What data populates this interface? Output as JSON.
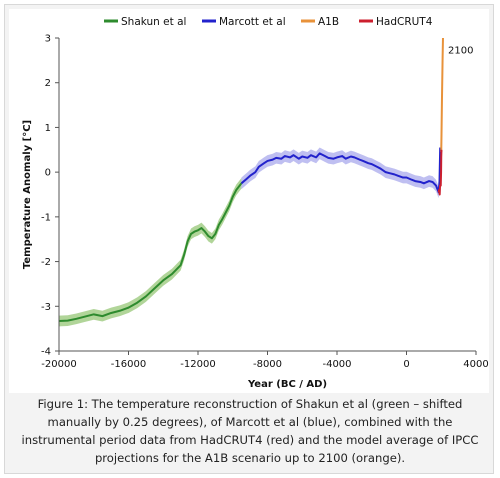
{
  "chart_data": {
    "type": "line",
    "xlabel": "Year (BC / AD)",
    "ylabel": "Temperature Anomaly [°C]",
    "xlim": [
      -20000,
      4000
    ],
    "ylim": [
      -4,
      3
    ],
    "xticks": [
      -20000,
      -16000,
      -12000,
      -8000,
      -4000,
      0,
      4000
    ],
    "xtick_labels": [
      "-20000",
      "-16000",
      "-12000",
      "-8000",
      "-4000",
      "0",
      "4000"
    ],
    "yticks": [
      -4,
      -3,
      -2,
      -1,
      0,
      1,
      2,
      3
    ],
    "ytick_labels": [
      "-4",
      "-3",
      "-2",
      "-1",
      "0",
      "1",
      "2",
      "3"
    ],
    "grid": false,
    "legend_position": "top",
    "annotations": [
      {
        "text": "2100",
        "x": 2100,
        "y": 2.85
      }
    ],
    "series": [
      {
        "name": "Shakun et al",
        "color": "#2e8b2e",
        "band_color": "#a9d08e",
        "band_half_width": 0.12,
        "x": [
          -20000,
          -19500,
          -19000,
          -18500,
          -18000,
          -17500,
          -17000,
          -16500,
          -16000,
          -15500,
          -15000,
          -14500,
          -14000,
          -13500,
          -13000,
          -12800,
          -12600,
          -12400,
          -12200,
          -12000,
          -11800,
          -11600,
          -11400,
          -11200,
          -11000,
          -10800,
          -10600,
          -10400,
          -10200,
          -10000,
          -9800,
          -9500
        ],
        "y": [
          -3.33,
          -3.32,
          -3.28,
          -3.23,
          -3.18,
          -3.22,
          -3.15,
          -3.1,
          -3.03,
          -2.92,
          -2.78,
          -2.6,
          -2.42,
          -2.28,
          -2.08,
          -1.85,
          -1.55,
          -1.38,
          -1.33,
          -1.3,
          -1.25,
          -1.33,
          -1.43,
          -1.48,
          -1.38,
          -1.18,
          -1.05,
          -0.9,
          -0.75,
          -0.55,
          -0.4,
          -0.25
        ]
      },
      {
        "name": "Marcott et al",
        "color": "#2222cc",
        "band_color": "#b8b8f0",
        "band_half_width": 0.13,
        "x": [
          -9500,
          -9200,
          -9000,
          -8700,
          -8500,
          -8200,
          -8000,
          -7700,
          -7500,
          -7200,
          -7000,
          -6700,
          -6500,
          -6200,
          -6000,
          -5700,
          -5500,
          -5200,
          -5000,
          -4700,
          -4500,
          -4200,
          -4000,
          -3700,
          -3500,
          -3200,
          -3000,
          -2700,
          -2500,
          -2200,
          -2000,
          -1700,
          -1500,
          -1200,
          -1000,
          -700,
          -500,
          -200,
          0,
          300,
          500,
          800,
          1000,
          1300,
          1500,
          1700,
          1850,
          1900,
          1940
        ],
        "y": [
          -0.25,
          -0.15,
          -0.08,
          0.0,
          0.12,
          0.2,
          0.25,
          0.28,
          0.32,
          0.3,
          0.36,
          0.33,
          0.38,
          0.3,
          0.35,
          0.32,
          0.38,
          0.33,
          0.42,
          0.36,
          0.32,
          0.3,
          0.33,
          0.36,
          0.3,
          0.35,
          0.33,
          0.28,
          0.25,
          0.2,
          0.18,
          0.12,
          0.08,
          0.0,
          -0.02,
          -0.05,
          -0.08,
          -0.12,
          -0.12,
          -0.17,
          -0.2,
          -0.22,
          -0.25,
          -0.2,
          -0.22,
          -0.3,
          -0.45,
          -0.2,
          0.55
        ]
      },
      {
        "name": "A1B",
        "color": "#e8923a",
        "x": [
          2000,
          2020,
          2040,
          2060,
          2080,
          2100
        ],
        "y": [
          0.45,
          1.0,
          1.6,
          2.1,
          2.6,
          3.0
        ]
      },
      {
        "name": "HadCRUT4",
        "color": "#cc1f2e",
        "x": [
          1850,
          1870,
          1890,
          1910,
          1930,
          1950,
          1970,
          1990,
          2000,
          2012
        ],
        "y": [
          -0.45,
          -0.4,
          -0.45,
          -0.5,
          -0.3,
          -0.3,
          -0.3,
          0.0,
          0.35,
          0.5
        ]
      }
    ]
  },
  "caption": {
    "text": "Figure 1: The temperature reconstruction of Shakun et al (green – shifted manually by 0.25 degrees), of Marcott et al (blue), combined with the instrumental period data from HadCRUT4 (red) and the model average of IPCC projections for the A1B scenario up to 2100 (orange)."
  }
}
